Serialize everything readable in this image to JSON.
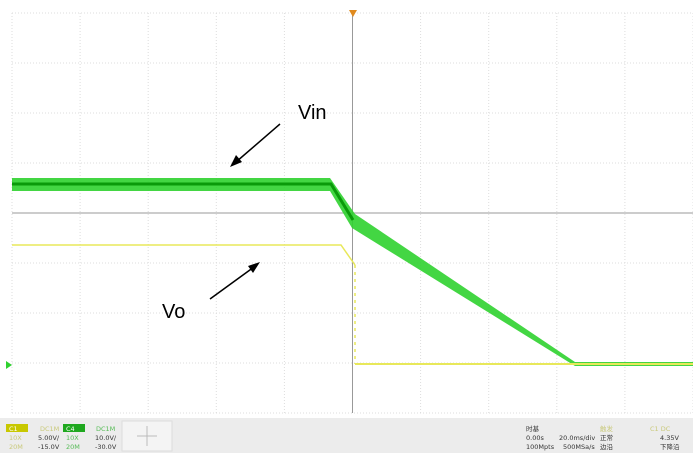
{
  "labels": {
    "vin": "Vin",
    "vo": "Vo"
  },
  "channels": [
    {
      "name": "C1",
      "coupling": "DC1M",
      "probe": "10X",
      "scale": "5.00V/",
      "bw": "20M",
      "offset": "-15.0V"
    },
    {
      "name": "C4",
      "coupling": "DC1M",
      "probe": "10X",
      "scale": "10.0V/",
      "bw": "20M",
      "offset": "-30.0V"
    }
  ],
  "timebase": {
    "title": "时基",
    "delay": "0.00s",
    "scale": "20.0ms/div",
    "depth": "100Mpts",
    "rate": "500MSa/s"
  },
  "trigger": {
    "title": "触发",
    "source": "C1 DC",
    "mode": "正常",
    "level": "4.35V",
    "type": "边沿",
    "slope": "下降沿"
  }
}
